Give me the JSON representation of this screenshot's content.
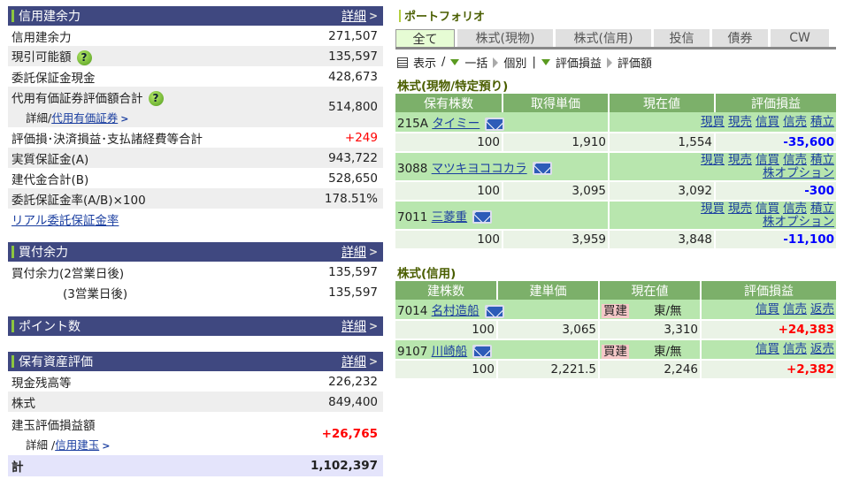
{
  "credit": {
    "title": "信用建余力",
    "more": "詳細",
    "rows": [
      {
        "label": "信用建余力",
        "value": "271,507"
      },
      {
        "label": "現引可能額",
        "value": "135,597",
        "help": true
      },
      {
        "label": "委託保証金現金",
        "value": "428,673"
      },
      {
        "label": "代用有価証券評価額合計",
        "value": "514,800",
        "help": true,
        "sub_prefix": "詳細/",
        "sub_link": "代用有価証券"
      },
      {
        "label": "評価損･決済損益･支払諸経費等合計",
        "value": "+249",
        "color": "red"
      },
      {
        "label": "実質保証金(A)",
        "value": "943,722"
      },
      {
        "label": "建代金合計(B)",
        "value": "528,650"
      },
      {
        "label": "委託保証金率(A/B)×100",
        "value": "178.51%"
      }
    ],
    "link": "リアル委託保証金率"
  },
  "buying": {
    "title": "買付余力",
    "more": "詳細",
    "rows": [
      {
        "label": "買付余力(2営業日後)",
        "value": "135,597"
      },
      {
        "label": "(3営業日後)",
        "value": "135,597"
      }
    ]
  },
  "points": {
    "title": "ポイント数",
    "more": "詳細"
  },
  "assets": {
    "title": "保有資産評価",
    "more": "詳細",
    "rows": [
      {
        "label": "現金残高等",
        "value": "226,232"
      },
      {
        "label": "株式",
        "value": "849,400"
      },
      {
        "label": "建玉評価損益額",
        "value": "+26,765",
        "color": "red-bold",
        "sub_prefix": "詳細 /",
        "sub_link": "信用建玉"
      }
    ],
    "total_label": "計",
    "total_value": "1,102,397"
  },
  "portfolio": {
    "title": "ポートフォリオ",
    "tabs": [
      "全て",
      "株式(現物)",
      "株式(信用)",
      "投信",
      "債券",
      "CW"
    ],
    "active_tab": 0,
    "toolbar": {
      "display": "表示",
      "sep": "/",
      "bulk": "一括",
      "individual": "個別",
      "pipe": "|",
      "pl": "評価損益",
      "value": "評価額"
    },
    "cash": {
      "title": "株式(現物/特定預り)",
      "headers": [
        "保有株数",
        "取得単価",
        "現在値",
        "評価損益"
      ],
      "rows": [
        {
          "code": "215A",
          "name": "タイミー",
          "actions": [
            "現買",
            "現売",
            "信買",
            "信売",
            "積立"
          ],
          "qty": "100",
          "cost": "1,910",
          "price": "1,554",
          "pl": "-35,600"
        },
        {
          "code": "3088",
          "name": "マツキヨココカラ",
          "actions": [
            "現買",
            "現売",
            "信買",
            "信売",
            "積立"
          ],
          "extra": "株オプション",
          "qty": "100",
          "cost": "3,095",
          "price": "3,092",
          "pl": "-300"
        },
        {
          "code": "7011",
          "name": "三菱重",
          "actions": [
            "現買",
            "現売",
            "信買",
            "信売",
            "積立"
          ],
          "extra": "株オプション",
          "qty": "100",
          "cost": "3,959",
          "price": "3,848",
          "pl": "-11,100"
        }
      ]
    },
    "margin": {
      "title": "株式(信用)",
      "headers": [
        "建株数",
        "建単価",
        "現在値",
        "評価損益"
      ],
      "rows": [
        {
          "code": "7014",
          "name": "名村造船",
          "side": "買建",
          "market": "東/無",
          "actions": [
            "信買",
            "信売",
            "返売"
          ],
          "qty": "100",
          "cost": "3,065",
          "price": "3,310",
          "pl": "+24,383"
        },
        {
          "code": "9107",
          "name": "川崎船",
          "side": "買建",
          "market": "東/無",
          "actions": [
            "信買",
            "信売",
            "返売"
          ],
          "qty": "100",
          "cost": "2,221.5",
          "price": "2,246",
          "pl": "+2,382"
        }
      ]
    }
  },
  "colors": {
    "header": "#3f4880",
    "accent": "#8cc63f",
    "table_header": "#7cb06a",
    "name_row": "#b8e6ae",
    "data_row": "#eaf3e6",
    "loss": "#0000ff",
    "gain": "#ff0000"
  },
  "icons": {
    "help": "question-circle-icon",
    "mail": "mail-icon",
    "chevron": "chevron-right-icon"
  }
}
